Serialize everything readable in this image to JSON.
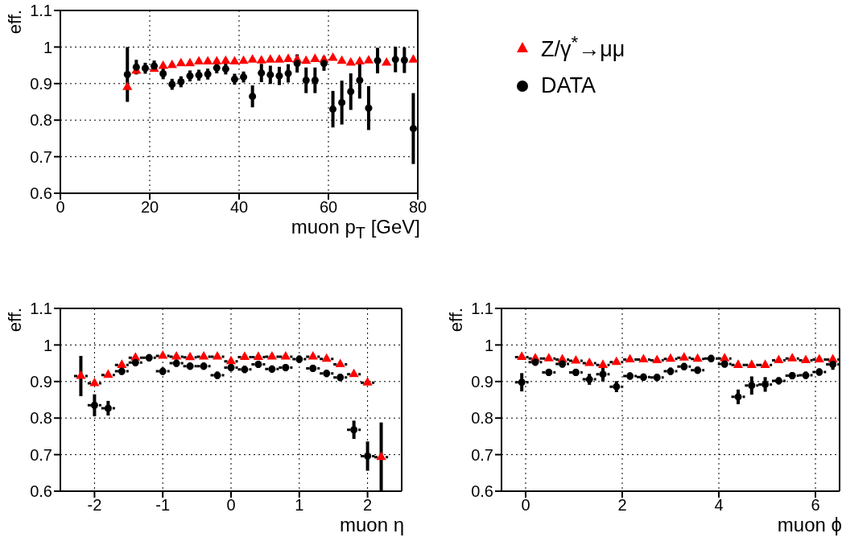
{
  "chart_data": [
    {
      "type": "scatter",
      "xlabel": "muon p$_{T}$ [GeV]",
      "ylabel": "eff.",
      "xlim": [
        0,
        80
      ],
      "xticks": [
        0,
        20,
        40,
        60,
        80
      ],
      "ylim": [
        0.6,
        1.1
      ],
      "yticks": [
        0.6,
        0.7,
        0.8,
        0.9,
        1,
        1.1
      ],
      "grid": true,
      "legend": "right",
      "x": [
        15,
        17,
        19,
        21,
        23,
        25,
        27,
        29,
        31,
        33,
        35,
        37,
        39,
        41,
        43,
        45,
        47,
        49,
        51,
        53,
        55,
        57,
        59,
        61,
        63,
        65,
        67,
        69,
        71,
        73,
        75,
        77,
        79
      ],
      "series": [
        {
          "name": "Z/γ$^{*}$→μμ",
          "color": "#ff0000",
          "marker": "triangle",
          "values": [
            0.89,
            0.935,
            null,
            0.94,
            0.948,
            0.95,
            0.955,
            0.955,
            0.96,
            0.96,
            0.96,
            0.962,
            0.96,
            0.962,
            0.965,
            0.963,
            0.965,
            0.965,
            0.967,
            0.965,
            0.962,
            0.967,
            0.965,
            0.97,
            0.962,
            0.957,
            0.96,
            0.963,
            null,
            0.957,
            null,
            null,
            0.965
          ]
        },
        {
          "name": "DATA",
          "color": "#000000",
          "marker": "circle",
          "values": [
            0.925,
            0.945,
            0.942,
            0.948,
            0.927,
            0.898,
            0.905,
            0.921,
            0.923,
            0.926,
            0.943,
            0.94,
            0.912,
            0.918,
            0.865,
            0.929,
            0.924,
            0.921,
            0.928,
            0.955,
            0.909,
            0.909,
            0.955,
            0.83,
            0.848,
            0.878,
            0.909,
            0.833,
            0.963,
            null,
            0.966,
            0.964,
            0.777
          ],
          "errors": [
            0.075,
            0.02,
            0.015,
            0.015,
            0.015,
            0.015,
            0.015,
            0.015,
            0.015,
            0.015,
            0.015,
            0.015,
            0.015,
            0.015,
            0.03,
            0.025,
            0.025,
            0.025,
            0.025,
            0.025,
            0.035,
            0.035,
            0.02,
            0.05,
            0.06,
            0.05,
            0.05,
            0.06,
            0.035,
            null,
            0.035,
            0.035,
            0.097
          ]
        }
      ]
    },
    {
      "type": "scatter",
      "xlabel": "muon η",
      "ylabel": "eff.",
      "xlim": [
        -2.5,
        2.5
      ],
      "xticks": [
        -2,
        -1,
        0,
        1,
        2
      ],
      "ylim": [
        0.6,
        1.1
      ],
      "yticks": [
        0.6,
        0.7,
        0.8,
        0.9,
        1,
        1.1
      ],
      "grid": true,
      "x": [
        -2.2,
        -2,
        -1.8,
        -1.6,
        -1.4,
        -1.2,
        -1,
        -0.8,
        -0.6,
        -0.4,
        -0.2,
        0,
        0.2,
        0.4,
        0.6,
        0.8,
        1,
        1.2,
        1.4,
        1.6,
        1.8,
        2,
        2.2
      ],
      "series": [
        {
          "color": "#ff0000",
          "marker": "triangle",
          "values": [
            0.915,
            0.895,
            0.918,
            0.945,
            0.965,
            null,
            0.97,
            0.968,
            0.966,
            0.968,
            0.968,
            0.955,
            0.967,
            0.967,
            0.968,
            0.968,
            null,
            0.968,
            0.962,
            0.947,
            0.92,
            0.897,
            0.693
          ],
          "errors": [
            0.055,
            null,
            null,
            null,
            null,
            null,
            null,
            null,
            null,
            null,
            null,
            null,
            null,
            null,
            null,
            null,
            null,
            null,
            null,
            null,
            null,
            null,
            0.095
          ],
          "xerrors": [
            0.1,
            0.1,
            0.1,
            0.1,
            0.1,
            null,
            0.1,
            0.1,
            0.1,
            0.1,
            0.1,
            0.1,
            0.1,
            0.1,
            0.1,
            0.1,
            null,
            0.1,
            0.1,
            0.1,
            0.1,
            0.1,
            0.1
          ]
        },
        {
          "color": "#000000",
          "marker": "circle",
          "values": [
            null,
            0.835,
            0.827,
            0.928,
            0.952,
            0.965,
            0.928,
            0.95,
            0.942,
            0.942,
            0.917,
            0.938,
            0.933,
            0.947,
            0.934,
            0.938,
            0.961,
            0.936,
            0.922,
            0.911,
            0.768,
            0.696,
            null
          ],
          "errors": [
            null,
            0.03,
            0.02,
            0.01,
            0.01,
            0.01,
            0.01,
            0.01,
            0.01,
            0.01,
            0.01,
            0.01,
            0.01,
            0.01,
            0.01,
            0.01,
            0.01,
            0.01,
            0.01,
            0.01,
            0.025,
            0.04,
            null
          ],
          "xerrors": [
            null,
            0.1,
            0.1,
            0.1,
            0.1,
            0.1,
            0.1,
            0.1,
            0.1,
            0.1,
            0.1,
            0.1,
            0.1,
            0.1,
            0.1,
            0.1,
            0.1,
            0.1,
            0.1,
            0.1,
            0.1,
            0.1,
            null
          ]
        }
      ]
    },
    {
      "type": "scatter",
      "xlabel": "muon ϕ",
      "ylabel": "eff.",
      "xlim": [
        -0.5,
        6.5
      ],
      "xticks": [
        0,
        2,
        4,
        6
      ],
      "ylim": [
        0.6,
        1.1
      ],
      "yticks": [
        0.6,
        0.7,
        0.8,
        0.9,
        1,
        1.1
      ],
      "grid": true,
      "x": [
        -0.08,
        0.2,
        0.48,
        0.76,
        1.04,
        1.32,
        1.6,
        1.88,
        2.16,
        2.44,
        2.72,
        3,
        3.28,
        3.56,
        3.84,
        4.12,
        4.4,
        4.68,
        4.96,
        5.24,
        5.52,
        5.8,
        6.08,
        6.36
      ],
      "series": [
        {
          "color": "#ff0000",
          "marker": "triangle",
          "values": [
            0.967,
            0.963,
            0.963,
            0.96,
            0.957,
            0.95,
            0.945,
            0.953,
            0.96,
            0.96,
            0.958,
            0.962,
            0.965,
            0.962,
            null,
            0.963,
            0.945,
            0.945,
            0.945,
            0.958,
            0.963,
            0.958,
            0.96,
            0.96
          ],
          "xerrors": [
            0.14,
            0.14,
            0.14,
            0.14,
            0.14,
            0.14,
            0.14,
            0.14,
            0.14,
            0.14,
            0.14,
            0.14,
            0.14,
            0.14,
            null,
            0.14,
            0.14,
            0.14,
            0.14,
            0.14,
            0.14,
            0.14,
            0.14,
            0.14
          ]
        },
        {
          "color": "#000000",
          "marker": "circle",
          "values": [
            0.898,
            0.953,
            0.925,
            0.948,
            0.925,
            0.906,
            0.92,
            0.886,
            0.915,
            0.912,
            0.911,
            0.928,
            0.941,
            0.931,
            0.963,
            0.948,
            0.858,
            0.889,
            0.892,
            0.902,
            0.916,
            0.917,
            0.926,
            0.947
          ],
          "errors": [
            0.025,
            0.01,
            0.01,
            0.01,
            0.01,
            0.015,
            0.02,
            0.015,
            0.01,
            0.01,
            0.01,
            0.01,
            0.01,
            0.01,
            0.01,
            0.01,
            0.02,
            0.025,
            0.02,
            0.01,
            0.01,
            0.01,
            0.01,
            0.015
          ],
          "xerrors": [
            0.14,
            0.14,
            0.14,
            0.14,
            0.14,
            0.14,
            0.14,
            0.14,
            0.14,
            0.14,
            0.14,
            0.14,
            0.14,
            0.14,
            0.14,
            0.14,
            0.14,
            0.14,
            0.14,
            0.14,
            0.14,
            0.14,
            0.14,
            0.14
          ]
        }
      ]
    }
  ]
}
